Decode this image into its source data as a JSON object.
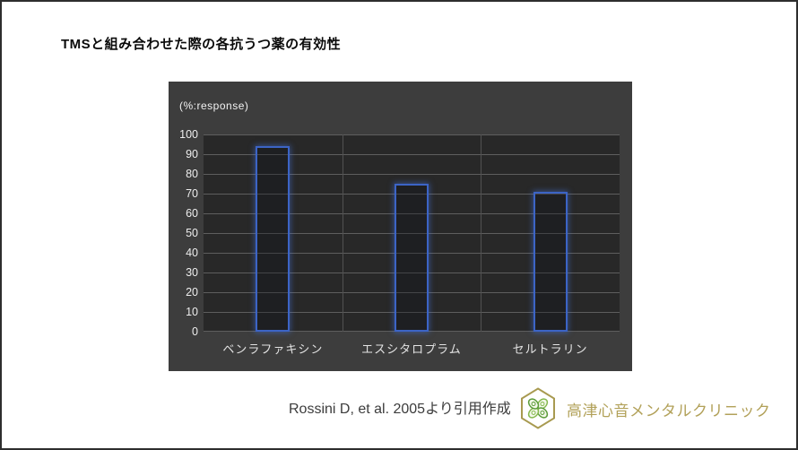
{
  "page": {
    "title": "TMSと組み合わせた際の各抗うつ薬の有効性"
  },
  "chart_data": {
    "type": "bar",
    "title": "TMSと組み合わせた際の各抗うつ薬の有効性",
    "unit_label": "(%:response)",
    "categories": [
      "ベンラファキシン",
      "エスシタロプラム",
      "セルトラリン"
    ],
    "values": [
      94,
      75,
      71
    ],
    "ylim": [
      0,
      100
    ],
    "ytick_step": 10,
    "grid": true,
    "legend_position": "none",
    "bar_style": "outlined",
    "colors": {
      "bar_outline": "#3c64c6",
      "panel_bg": "#3d3d3d",
      "plot_bg": "#282828",
      "gridline": "#5e5e5e",
      "tick_label": "#ededed"
    }
  },
  "footer": {
    "citation": "Rossini D, et al. 2005より引用作成",
    "clinic_name": "高津心音メンタルクリニック",
    "logo_icon": "hexagon-clover-icon",
    "logo_colors": {
      "hexagon_gold": "#a89a50",
      "leaf_green_light": "#86b94e",
      "leaf_green_dark": "#5c9c3a"
    }
  }
}
